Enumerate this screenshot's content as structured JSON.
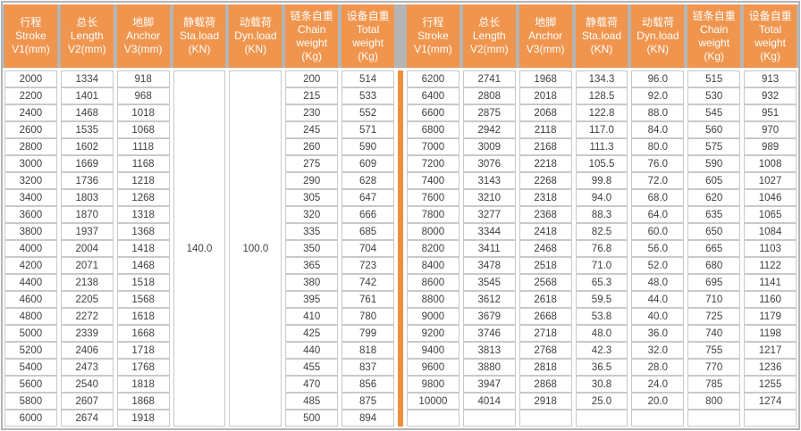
{
  "header_columns": [
    {
      "text": "行程\nStroke\nV1(mm)"
    },
    {
      "text": "总长\nLength\nV2(mm)"
    },
    {
      "text": "地脚\nAnchor\nV3(mm)"
    },
    {
      "text": "静载荷\nSta.load\n(KN)"
    },
    {
      "text": "动载荷\nDyn.load\n(KN)"
    },
    {
      "text": "链条自重\nChain\nweight\n(Kg)"
    },
    {
      "text": "设备自重\nTotal\nweight\n(Kg)"
    }
  ],
  "left_table": {
    "merged": {
      "sta_load": "140.0",
      "dyn_load": "100.0"
    },
    "rows": [
      [
        "2000",
        "1334",
        "918",
        "200",
        "514"
      ],
      [
        "2200",
        "1401",
        "968",
        "215",
        "533"
      ],
      [
        "2400",
        "1468",
        "1018",
        "230",
        "552"
      ],
      [
        "2600",
        "1535",
        "1068",
        "245",
        "571"
      ],
      [
        "2800",
        "1602",
        "1118",
        "260",
        "590"
      ],
      [
        "3000",
        "1669",
        "1168",
        "275",
        "609"
      ],
      [
        "3200",
        "1736",
        "1218",
        "290",
        "628"
      ],
      [
        "3400",
        "1803",
        "1268",
        "305",
        "647"
      ],
      [
        "3600",
        "1870",
        "1318",
        "320",
        "666"
      ],
      [
        "3800",
        "1937",
        "1368",
        "335",
        "685"
      ],
      [
        "4000",
        "2004",
        "1418",
        "350",
        "704"
      ],
      [
        "4200",
        "2071",
        "1468",
        "365",
        "723"
      ],
      [
        "4400",
        "2138",
        "1518",
        "380",
        "742"
      ],
      [
        "4600",
        "2205",
        "1568",
        "395",
        "761"
      ],
      [
        "4800",
        "2272",
        "1618",
        "410",
        "780"
      ],
      [
        "5000",
        "2339",
        "1668",
        "425",
        "799"
      ],
      [
        "5200",
        "2406",
        "1718",
        "440",
        "818"
      ],
      [
        "5400",
        "2473",
        "1768",
        "455",
        "837"
      ],
      [
        "5600",
        "2540",
        "1818",
        "470",
        "856"
      ],
      [
        "5800",
        "2607",
        "1868",
        "485",
        "875"
      ],
      [
        "6000",
        "2674",
        "1918",
        "500",
        "894"
      ]
    ]
  },
  "right_table": {
    "rows": [
      [
        "6200",
        "2741",
        "1968",
        "134.3",
        "96.0",
        "515",
        "913"
      ],
      [
        "6400",
        "2808",
        "2018",
        "128.5",
        "92.0",
        "530",
        "932"
      ],
      [
        "6600",
        "2875",
        "2068",
        "122.8",
        "88.0",
        "545",
        "951"
      ],
      [
        "6800",
        "2942",
        "2118",
        "117.0",
        "84.0",
        "560",
        "970"
      ],
      [
        "7000",
        "3009",
        "2168",
        "111.3",
        "80.0",
        "575",
        "989"
      ],
      [
        "7200",
        "3076",
        "2218",
        "105.5",
        "76.0",
        "590",
        "1008"
      ],
      [
        "7400",
        "3143",
        "2268",
        "99.8",
        "72.0",
        "605",
        "1027"
      ],
      [
        "7600",
        "3210",
        "2318",
        "94.0",
        "68.0",
        "620",
        "1046"
      ],
      [
        "7800",
        "3277",
        "2368",
        "88.3",
        "64.0",
        "635",
        "1065"
      ],
      [
        "8000",
        "3344",
        "2418",
        "82.5",
        "60.0",
        "650",
        "1084"
      ],
      [
        "8200",
        "3411",
        "2468",
        "76.8",
        "56.0",
        "665",
        "1103"
      ],
      [
        "8400",
        "3478",
        "2518",
        "71.0",
        "52.0",
        "680",
        "1122"
      ],
      [
        "8600",
        "3545",
        "2568",
        "65.3",
        "48.0",
        "695",
        "1141"
      ],
      [
        "8800",
        "3612",
        "2618",
        "59.5",
        "44.0",
        "710",
        "1160"
      ],
      [
        "9000",
        "3679",
        "2668",
        "53.8",
        "40.0",
        "725",
        "1179"
      ],
      [
        "9200",
        "3746",
        "2718",
        "48.0",
        "36.0",
        "740",
        "1198"
      ],
      [
        "9400",
        "3813",
        "2768",
        "42.3",
        "32.0",
        "755",
        "1217"
      ],
      [
        "9600",
        "3880",
        "2818",
        "36.5",
        "28.0",
        "770",
        "1236"
      ],
      [
        "9800",
        "3947",
        "2868",
        "30.8",
        "24.0",
        "785",
        "1255"
      ],
      [
        "10000",
        "4014",
        "2918",
        "25.0",
        "20.0",
        "800",
        "1274"
      ],
      [
        "",
        "",
        "",
        "",
        "",
        "",
        ""
      ]
    ]
  },
  "colors": {
    "header_orange": "#F0954E",
    "divider_orange": "#EF8E3C",
    "frame_gray": "#B5B5B5",
    "cell_border_gray": "#C9C9C9",
    "text_dark": "#3F3F3F"
  }
}
